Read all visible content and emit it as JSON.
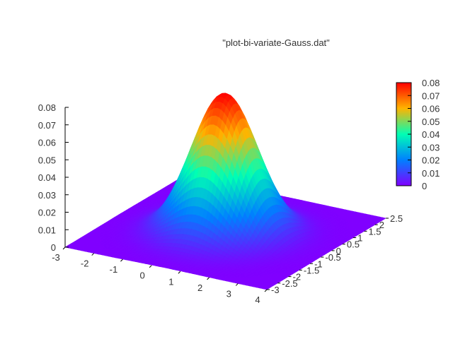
{
  "chart_data": {
    "type": "surface",
    "title": "\"plot-bi-variate-Gauss.dat\"",
    "xlabel": "",
    "ylabel": "",
    "zlabel": "",
    "xlim": [
      -3,
      4
    ],
    "ylim": [
      -3,
      2.5
    ],
    "zlim": [
      0,
      0.08
    ],
    "x_ticks": [
      "-3",
      "-2",
      "-1",
      "0",
      "1",
      "2",
      "3",
      "4"
    ],
    "y_ticks": [
      "-3",
      "-2.5",
      "-2",
      "-1.5",
      "-1",
      "-0.5",
      "0",
      "0.5",
      "1",
      "1.5",
      "2",
      "2.5"
    ],
    "z_ticks": [
      "0",
      "0.01",
      "0.02",
      "0.03",
      "0.04",
      "0.05",
      "0.06",
      "0.07",
      "0.08"
    ],
    "colorbar": {
      "range": [
        0,
        0.08
      ],
      "ticks": [
        "0",
        "0.01",
        "0.02",
        "0.03",
        "0.04",
        "0.05",
        "0.06",
        "0.07",
        "0.08"
      ],
      "palette": "rainbow"
    },
    "surface": {
      "function": "bivariate gaussian",
      "mean_x": 0.5,
      "mean_y": -0.3,
      "sigma_x": 1.0,
      "sigma_y": 0.8,
      "peak": 0.08
    },
    "grid": false,
    "colors": {
      "low": "#8000ff",
      "mid": "#00ffb0",
      "high": "#ff0000"
    }
  }
}
